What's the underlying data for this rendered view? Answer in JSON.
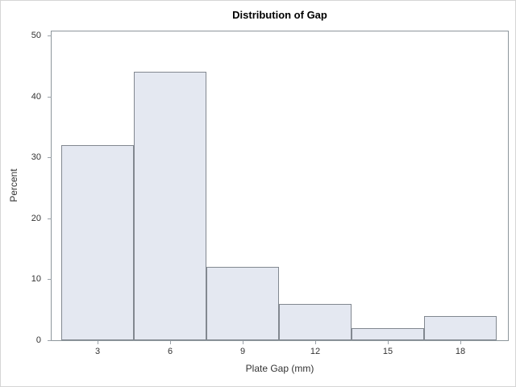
{
  "chart_data": {
    "type": "bar",
    "subtype": "histogram",
    "title": "Distribution of Gap",
    "xlabel": "Plate Gap (mm)",
    "ylabel": "Percent",
    "categories": [
      3,
      6,
      9,
      12,
      15,
      18
    ],
    "values": [
      32,
      44,
      12,
      6,
      2,
      4
    ],
    "bin_width": 3,
    "bin_edges": [
      1.5,
      4.5,
      7.5,
      10.5,
      13.5,
      16.5,
      19.5
    ],
    "yticks": [
      0,
      10,
      20,
      30,
      40,
      50
    ],
    "ylim": [
      0,
      50
    ],
    "xlim": [
      1.1,
      19.97
    ],
    "grid": false,
    "legend_position": "none",
    "colors": {
      "bar_fill": "#E4E8F1",
      "bar_border": "#828890",
      "frame": "#8D969C",
      "tick": "#9AA1A8",
      "text": "#333333",
      "title_text": "#000000",
      "background": "#FFFFFF",
      "page_border": "#D5D5D5"
    }
  }
}
